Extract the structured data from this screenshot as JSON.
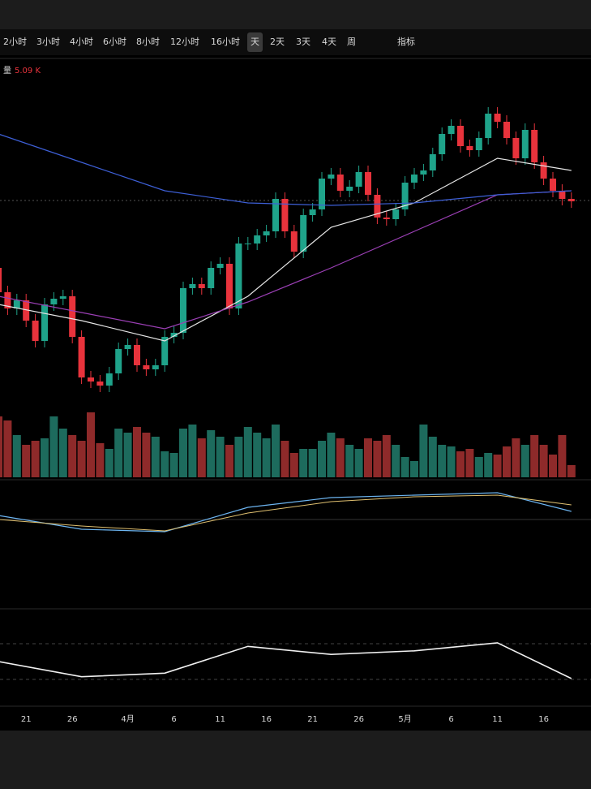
{
  "toolbar": {
    "items": [
      "2小时",
      "3小时",
      "4小时",
      "6小时",
      "8小时",
      "12小时",
      "16小时",
      "天",
      "2天",
      "3天",
      "4天",
      "周",
      "指标"
    ],
    "active": "天"
  },
  "chart_data": {
    "type": "candlestick",
    "volume_label": "量",
    "volume_value": "5.09 K",
    "categories": [
      null,
      null,
      null,
      "21",
      null,
      null,
      null,
      null,
      "26",
      null,
      null,
      null,
      null,
      null,
      "4月",
      null,
      null,
      null,
      null,
      "6",
      null,
      null,
      null,
      null,
      "11",
      null,
      null,
      null,
      null,
      "16",
      null,
      null,
      null,
      null,
      "21",
      null,
      null,
      null,
      null,
      "26",
      null,
      null,
      null,
      null,
      "5月",
      null,
      null,
      null,
      null,
      "6",
      null,
      null,
      null,
      null,
      "11",
      null,
      null,
      null,
      null,
      "16",
      null,
      null,
      null
    ],
    "open": [
      170,
      140,
      120,
      130,
      105,
      80,
      125,
      132,
      135,
      85,
      35,
      30,
      25,
      40,
      70,
      75,
      50,
      45,
      50,
      85,
      90,
      145,
      150,
      145,
      170,
      175,
      120,
      200,
      200,
      210,
      215,
      255,
      215,
      190,
      235,
      242,
      280,
      285,
      265,
      270,
      288,
      260,
      232,
      230,
      242,
      275,
      285,
      290,
      310,
      335,
      345,
      320,
      315,
      330,
      360,
      350,
      330,
      305,
      340,
      300,
      280,
      265,
      255
    ],
    "high": [
      178,
      148,
      138,
      138,
      113,
      133,
      140,
      143,
      143,
      93,
      43,
      38,
      48,
      78,
      83,
      83,
      58,
      58,
      93,
      98,
      153,
      158,
      158,
      178,
      183,
      183,
      208,
      208,
      218,
      223,
      263,
      263,
      223,
      243,
      250,
      288,
      293,
      293,
      278,
      296,
      296,
      268,
      240,
      250,
      283,
      293,
      298,
      318,
      343,
      353,
      353,
      328,
      338,
      368,
      368,
      358,
      338,
      348,
      348,
      308,
      288,
      273,
      263
    ],
    "low": [
      132,
      112,
      112,
      97,
      72,
      72,
      117,
      124,
      77,
      27,
      22,
      17,
      17,
      32,
      62,
      42,
      37,
      37,
      42,
      77,
      82,
      137,
      137,
      137,
      162,
      112,
      112,
      192,
      192,
      202,
      207,
      207,
      182,
      182,
      227,
      234,
      272,
      257,
      257,
      262,
      252,
      224,
      222,
      222,
      234,
      267,
      277,
      282,
      302,
      327,
      312,
      307,
      307,
      322,
      342,
      322,
      297,
      297,
      292,
      272,
      257,
      247,
      244
    ],
    "close": [
      140,
      120,
      130,
      105,
      80,
      125,
      132,
      135,
      85,
      35,
      30,
      25,
      40,
      70,
      75,
      50,
      45,
      50,
      85,
      90,
      145,
      150,
      145,
      170,
      175,
      120,
      200,
      200,
      210,
      215,
      255,
      215,
      190,
      235,
      242,
      280,
      285,
      265,
      270,
      288,
      260,
      232,
      230,
      242,
      275,
      285,
      290,
      310,
      335,
      345,
      320,
      315,
      330,
      360,
      350,
      330,
      305,
      340,
      300,
      280,
      265,
      255,
      252
    ],
    "ylim": [
      0,
      380
    ],
    "up_color": "#1fa38a",
    "down_color": "#e8333c",
    "averages": [
      {
        "color": "#e6e6e6",
        "x": [
          0,
          9,
          18,
          27,
          36,
          45,
          54,
          62
        ],
        "values": [
          125,
          105,
          80,
          135,
          220,
          250,
          305,
          290
        ]
      },
      {
        "color": "#9b3fb5",
        "x": [
          0,
          9,
          18,
          27,
          36,
          45,
          54,
          62
        ],
        "values": [
          135,
          115,
          95,
          128,
          170,
          215,
          260,
          265
        ]
      },
      {
        "color": "#3d5fd6",
        "x": [
          0,
          9,
          18,
          27,
          36,
          45,
          54,
          62
        ],
        "values": [
          335,
          300,
          265,
          250,
          247,
          250,
          260,
          265
        ]
      }
    ],
    "volume": [
      75,
      70,
      52,
      40,
      45,
      48,
      75,
      60,
      52,
      45,
      80,
      42,
      35,
      60,
      55,
      62,
      55,
      50,
      32,
      30,
      60,
      65,
      48,
      58,
      50,
      40,
      50,
      62,
      55,
      48,
      65,
      45,
      30,
      35,
      35,
      45,
      55,
      48,
      40,
      35,
      48,
      45,
      52,
      40,
      25,
      20,
      65,
      50,
      40,
      38,
      32,
      35,
      25,
      30,
      28,
      38,
      48,
      40,
      52,
      40,
      28,
      52,
      15
    ],
    "volume_ylim": [
      0,
      90
    ],
    "macd": {
      "x": [
        0,
        9,
        18,
        27,
        36,
        45,
        54,
        62
      ],
      "dif": [
        5,
        -12,
        -15,
        15,
        27,
        30,
        33,
        10
      ],
      "dea": [
        0,
        -8,
        -14,
        8,
        22,
        28,
        30,
        18
      ],
      "ylim": [
        -40,
        45
      ]
    },
    "rsi": {
      "x": [
        0,
        9,
        18,
        27,
        36,
        45,
        54,
        62
      ],
      "values": [
        50,
        33,
        37,
        67,
        58,
        62,
        71,
        31
      ],
      "levels": [
        70,
        30
      ],
      "ylim": [
        0,
        100
      ]
    }
  }
}
